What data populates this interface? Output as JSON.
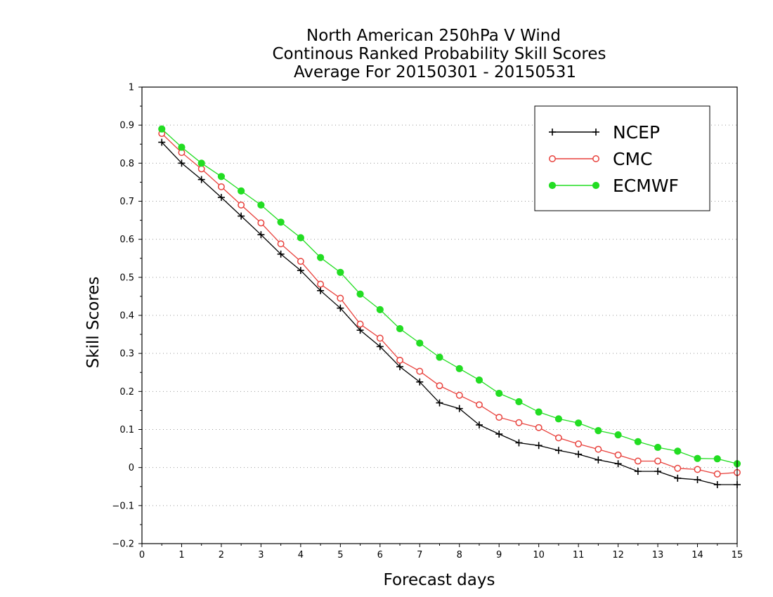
{
  "chart_data": {
    "type": "line",
    "title_lines": [
      "North American 250hPa V Wind",
      "Continous Ranked Probability Skill Scores",
      "Average For 20150301 - 20150531"
    ],
    "xlabel": "Forecast days",
    "ylabel": "Skill Scores",
    "xlim": [
      0,
      15
    ],
    "ylim": [
      -0.2,
      1
    ],
    "x_ticks": [
      0,
      1,
      2,
      3,
      4,
      5,
      6,
      7,
      8,
      9,
      10,
      11,
      12,
      13,
      14,
      15
    ],
    "x_tick_labels": [
      "0",
      "1",
      "2",
      "3",
      "4",
      "5",
      "6",
      "7",
      "8",
      "9",
      "10",
      "11",
      "12",
      "13",
      "14",
      "15"
    ],
    "y_ticks": [
      -0.2,
      -0.1,
      0,
      0.1,
      0.2,
      0.3,
      0.4,
      0.5,
      0.6,
      0.7,
      0.8,
      0.9,
      1
    ],
    "y_tick_labels": [
      "−0.2",
      "−0.1",
      "0",
      "0.1",
      "0.2",
      "0.3",
      "0.4",
      "0.5",
      "0.6",
      "0.7",
      "0.8",
      "0.9",
      "1"
    ],
    "grid": "horizontal-dotted",
    "legend_position": "top-right",
    "x": [
      0.5,
      1,
      1.5,
      2,
      2.5,
      3,
      3.5,
      4,
      4.5,
      5,
      5.5,
      6,
      6.5,
      7,
      7.5,
      8,
      8.5,
      9,
      9.5,
      10,
      10.5,
      11,
      11.5,
      12,
      12.5,
      13,
      13.5,
      14,
      14.5,
      15
    ],
    "series": [
      {
        "name": "NCEP",
        "color": "#000000",
        "marker": "plus",
        "values": [
          0.855,
          0.8,
          0.757,
          0.71,
          0.661,
          0.612,
          0.561,
          0.518,
          0.465,
          0.419,
          0.361,
          0.318,
          0.265,
          0.225,
          0.17,
          0.155,
          0.112,
          0.088,
          0.065,
          0.058,
          0.045,
          0.035,
          0.02,
          0.01,
          -0.01,
          -0.01,
          -0.028,
          -0.032,
          -0.045,
          -0.045
        ]
      },
      {
        "name": "CMC",
        "color": "#e8413c",
        "marker": "open-circle",
        "values": [
          0.878,
          0.828,
          0.785,
          0.738,
          0.69,
          0.643,
          0.588,
          0.542,
          0.482,
          0.445,
          0.377,
          0.34,
          0.282,
          0.253,
          0.215,
          0.19,
          0.165,
          0.132,
          0.118,
          0.105,
          0.078,
          0.062,
          0.048,
          0.033,
          0.017,
          0.017,
          -0.002,
          -0.005,
          -0.017,
          -0.013
        ]
      },
      {
        "name": "ECMWF",
        "color": "#22dd22",
        "marker": "filled-circle",
        "values": [
          0.89,
          0.842,
          0.8,
          0.765,
          0.727,
          0.69,
          0.645,
          0.604,
          0.552,
          0.513,
          0.456,
          0.415,
          0.365,
          0.327,
          0.29,
          0.26,
          0.23,
          0.195,
          0.173,
          0.146,
          0.128,
          0.117,
          0.097,
          0.086,
          0.068,
          0.053,
          0.043,
          0.024,
          0.023,
          0.01
        ]
      }
    ]
  }
}
